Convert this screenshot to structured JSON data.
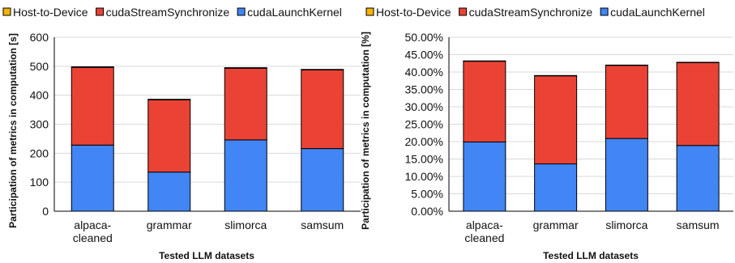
{
  "colors": {
    "host_to_device": "#f4b400",
    "cuda_stream_synchronize": "#ea4335",
    "cuda_launch_kernel": "#4285f4",
    "gridline": "#d9d9d9",
    "axis": "#000000"
  },
  "chart_data": [
    {
      "type": "bar",
      "stacked": true,
      "categories": [
        "alpaca-\ncleaned",
        "grammar",
        "slimorca",
        "samsum"
      ],
      "series": [
        {
          "name": "cudaLaunchKernel",
          "color": "#4285f4",
          "values": [
            228,
            135,
            246,
            216
          ]
        },
        {
          "name": "cudaStreamSynchronize",
          "color": "#ea4335",
          "values": [
            268,
            249,
            247,
            271
          ]
        },
        {
          "name": "Host-to-Device",
          "color": "#f4b400",
          "values": [
            2,
            2,
            2,
            2
          ]
        }
      ],
      "legend_order": [
        "Host-to-Device",
        "cudaStreamSynchronize",
        "cudaLaunchKernel"
      ],
      "legend_position": "top",
      "xlabel": "Tested LLM datasets",
      "ylabel": "Participation of metrics in computation [s]",
      "ylim": [
        0,
        600
      ],
      "yticks": [
        0,
        100,
        200,
        300,
        400,
        500,
        600
      ],
      "ytick_labels": [
        "0",
        "100",
        "200",
        "300",
        "400",
        "500",
        "600"
      ],
      "grid": true
    },
    {
      "type": "bar",
      "stacked": true,
      "categories": [
        "alpaca-\ncleaned",
        "grammar",
        "slimorca",
        "samsum"
      ],
      "series": [
        {
          "name": "cudaLaunchKernel",
          "color": "#4285f4",
          "values": [
            19.9,
            13.6,
            20.9,
            18.9
          ]
        },
        {
          "name": "cudaStreamSynchronize",
          "color": "#ea4335",
          "values": [
            23.2,
            25.3,
            21.0,
            23.8
          ]
        },
        {
          "name": "Host-to-Device",
          "color": "#f4b400",
          "values": [
            0.1,
            0.1,
            0.1,
            0.1
          ]
        }
      ],
      "legend_order": [
        "Host-to-Device",
        "cudaStreamSynchronize",
        "cudaLaunchKernel"
      ],
      "legend_position": "top",
      "xlabel": "Tested LLM datasets",
      "ylabel": "Participation of metrics in computation [%]",
      "ylim": [
        0,
        50
      ],
      "yticks": [
        0,
        5,
        10,
        15,
        20,
        25,
        30,
        35,
        40,
        45,
        50
      ],
      "ytick_labels": [
        "0.00%",
        "5.00%",
        "10.00%",
        "15.00%",
        "20.00%",
        "25.00%",
        "30.00%",
        "35.00%",
        "40.00%",
        "45.00%",
        "50.00%"
      ],
      "grid": true
    }
  ]
}
